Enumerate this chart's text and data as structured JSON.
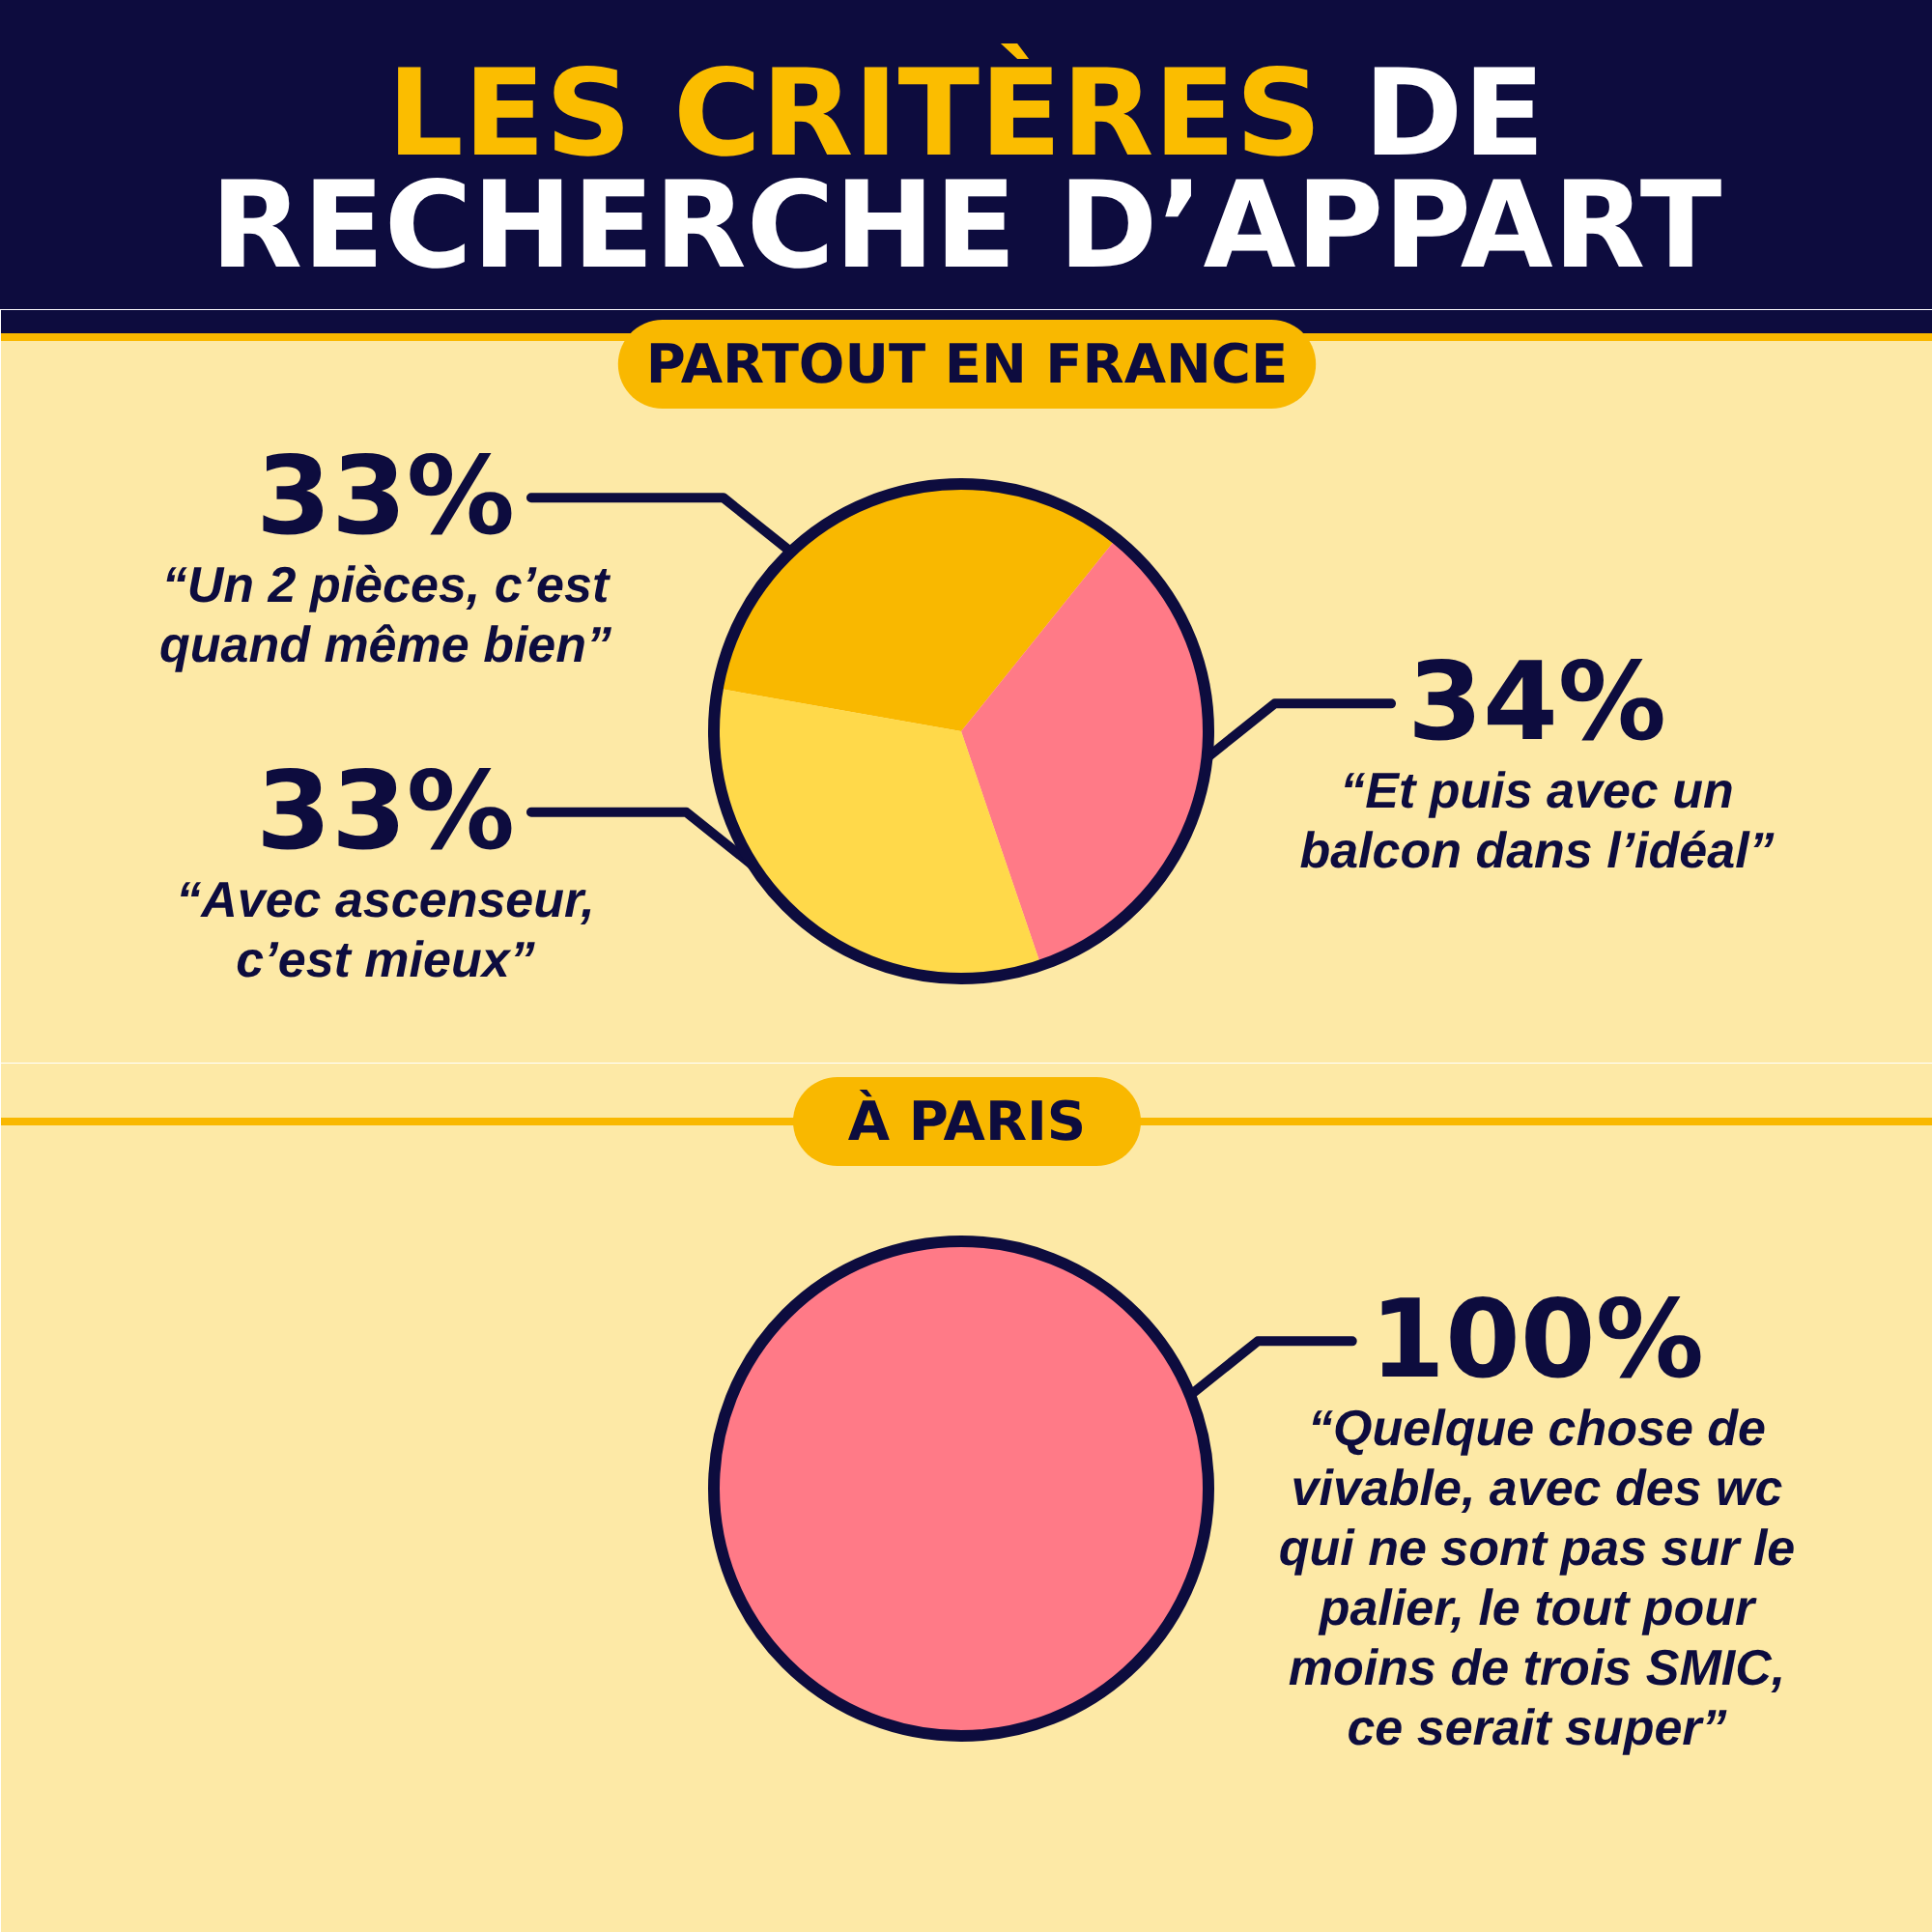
{
  "chart_data": [
    {
      "type": "pie",
      "title": "LES CRITÈRES DE RECHERCHE D’APPART",
      "subtitle": "PARTOUT EN FRANCE",
      "categories": [
        "“Un 2 pièces, c’est quand même bien”",
        "“Et puis avec un balcon dans l’idéal”",
        "“Avec ascenseur, c’est mieux”"
      ],
      "values": [
        33,
        34,
        33
      ],
      "colors": [
        "#f9b800",
        "#ff7a87",
        "#ffd94a"
      ],
      "value_labels": [
        "33%",
        "34%",
        "33%"
      ]
    },
    {
      "type": "pie",
      "title": "À PARIS",
      "categories": [
        "“Quelque chose de vivable, avec des wc qui ne sont pas sur le palier, le tout pour moins de trois SMIC, ce serait super”"
      ],
      "values": [
        100
      ],
      "colors": [
        "#ff7a87"
      ],
      "value_labels": [
        "100%"
      ]
    }
  ]
}
